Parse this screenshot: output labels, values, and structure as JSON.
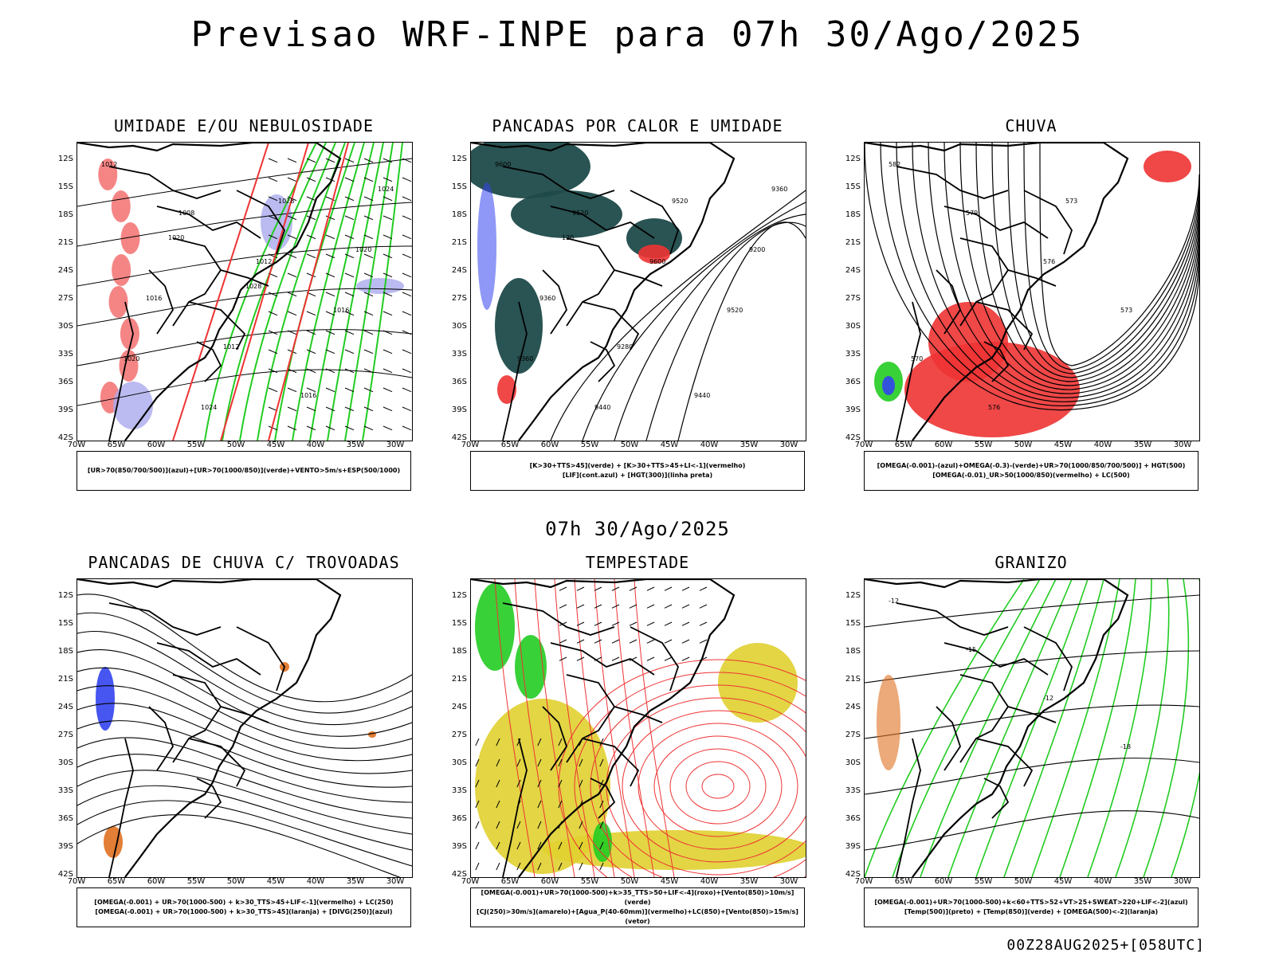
{
  "header": {
    "title": "Previsao WRF-INPE  para 07h 30/Ago/2025",
    "mid_title": "07h 30/Ago/2025",
    "footer": "00Z28AUG2025+[058UTC]"
  },
  "axes": {
    "lat_labels": [
      "12S",
      "15S",
      "18S",
      "21S",
      "24S",
      "27S",
      "30S",
      "33S",
      "36S",
      "39S",
      "42S"
    ],
    "lon_labels": [
      "70W",
      "65W",
      "60W",
      "55W",
      "50W",
      "45W",
      "40W",
      "35W",
      "30W"
    ]
  },
  "panels": [
    {
      "id": "umidade",
      "title": "UMIDADE E/OU NEBULOSIDADE",
      "legend": [
        "[UR>70(850/700/500)](azul)+[UR>70(1000/850)](verde)+VENTO>5m/s+ESP(500/1000)"
      ],
      "labels": [
        "1012",
        "1008",
        "1012",
        "1016",
        "1020",
        "1024",
        "1028",
        "1020",
        "1016",
        "1012",
        "1016",
        "1024",
        "1020",
        "1028"
      ]
    },
    {
      "id": "pancadas-calor",
      "title": "PANCADAS POR CALOR E UMIDADE",
      "legend": [
        "[K>30+TTS>45](verde) + [K>30+TTS>45+LI<-1](vermelho)",
        "[LIF](cont.azul) + [HGT(300)](linha preta)"
      ],
      "labels": [
        "9600",
        "9520",
        "9600",
        "9520",
        "9360",
        "9440",
        "9520",
        "9200",
        "9360",
        "9280",
        "9440",
        "9360",
        "120"
      ]
    },
    {
      "id": "chuva",
      "title": "CHUVA",
      "legend": [
        "[OMEGA(-0.001)-(azul)+OMEGA(-0.3)-(verde)+UR>70(1000/850/700/500)] + HGT(500)",
        "[OMEGA(-0.01)_UR>50(1000/850)(vermelho) + LC(500)"
      ],
      "labels": [
        "582",
        "579",
        "576",
        "573",
        "570",
        "576",
        "573"
      ]
    },
    {
      "id": "trovoadas",
      "title": "PANCADAS DE CHUVA C/ TROVOADAS",
      "legend": [
        "[OMEGA(-0.001) + UR>70(1000-500) + k>30_TTS>45+LIF<-1](vermelho) + LC(250)",
        "[OMEGA(-0.001) + UR>70(1000-500) + k>30_TTS>45](laranja) + [DIVG(250)](azul)"
      ],
      "labels": []
    },
    {
      "id": "tempestade",
      "title": "TEMPESTADE",
      "legend": [
        "[OMEGA(-0.001)+UR>70(1000-500)+k>35_TTS>50+LIF<-4](roxo)+[Vento(850)>10m/s](verde)",
        "[CJ(250)>30m/s](amarelo)+[Agua_P(40-60mm)](vermelho)+LC(850)+[Vento(850)>15m/s](vetor)"
      ],
      "labels": []
    },
    {
      "id": "granizo",
      "title": "GRANIZO",
      "legend": [
        "[OMEGA(-0.001)+UR>70(1000-500)+k<60+TTS>52+VT>25+SWEAT>220+LIF<-2](azul)",
        "[Temp(500)](preto) + [Temp(850)](verde) + [OMEGA(500)<-2](laranja)"
      ],
      "labels": [
        "-12",
        "-15",
        "-12",
        "-18"
      ]
    }
  ],
  "colors": {
    "green": "#22cc22",
    "red": "#ee3333",
    "blue": "#3344ee",
    "lavender": "#aaaaee",
    "teal": "#1f4a4a",
    "yellow": "#e0d030",
    "orange": "#e07020"
  }
}
